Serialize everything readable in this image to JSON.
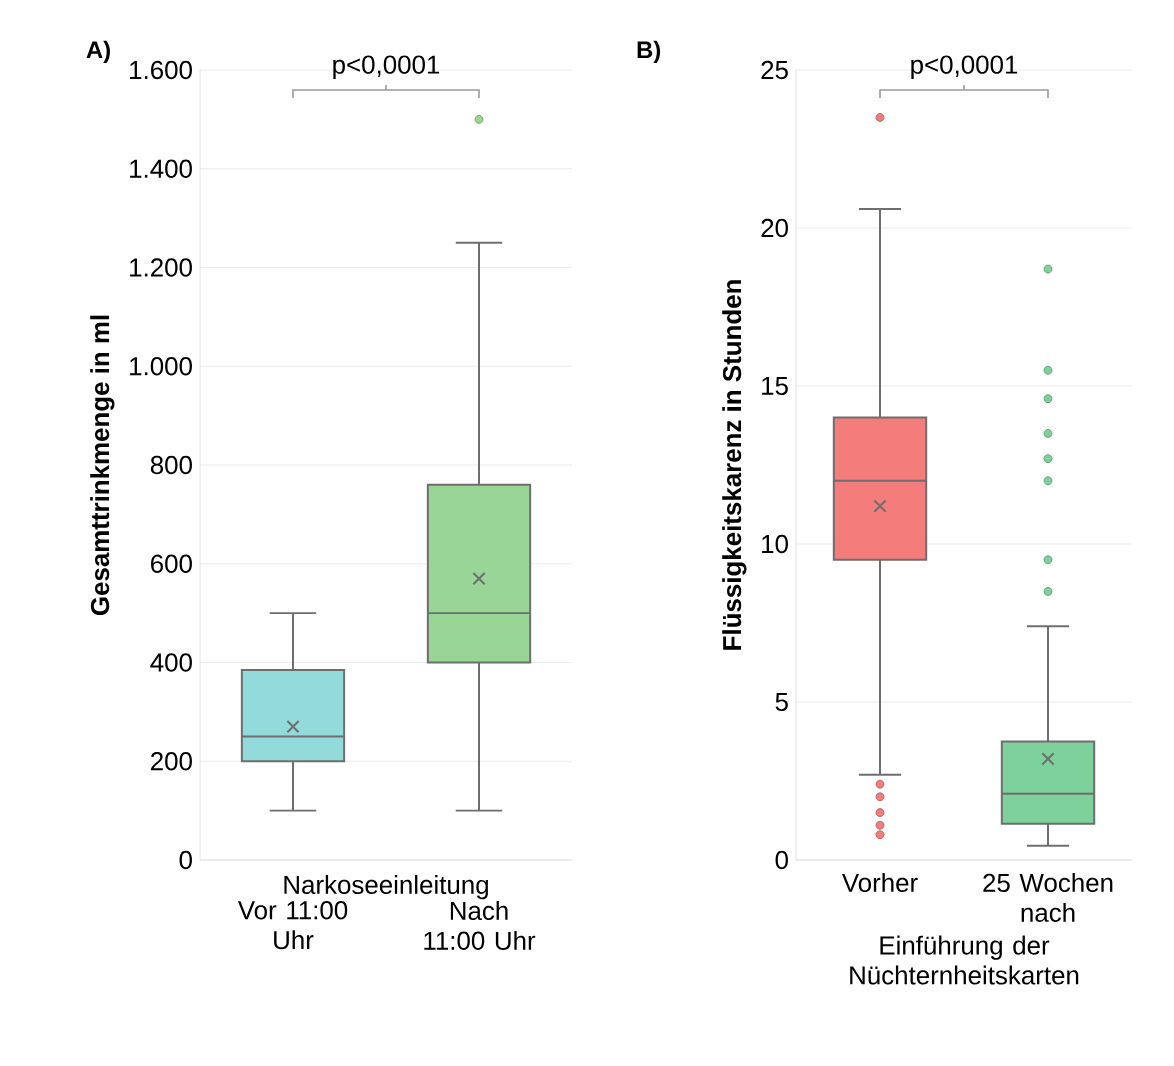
{
  "chart_data": [
    {
      "type": "box",
      "title": "A)",
      "ylabel": "Gesamttrinkmenge in ml",
      "xlabel": "Narkoseeinleitung",
      "categories": [
        "Vor 11:00 Uhr",
        "Nach 11:00 Uhr"
      ],
      "colors": [
        "#93dbdb",
        "#98d596"
      ],
      "boxes": [
        {
          "low": 100,
          "q1": 200,
          "median": 250,
          "q3": 385,
          "high": 500,
          "mean": 270
        },
        {
          "low": 100,
          "q1": 400,
          "median": 500,
          "q3": 760,
          "high": 1250,
          "mean": 570,
          "outliers": [
            1500
          ]
        }
      ],
      "ylim": [
        0,
        1600
      ],
      "yticks": [
        0,
        200,
        400,
        600,
        800,
        {
          "value": 1000,
          "label": "1.000"
        },
        {
          "value": 1200,
          "label": "1.200"
        },
        {
          "value": 1400,
          "label": "1.400"
        },
        {
          "value": 1600,
          "label": "1.600"
        }
      ],
      "grid": "y",
      "annotations": [
        "p<0,0001"
      ]
    },
    {
      "type": "box",
      "title": "B)",
      "ylabel": "Flüssigkeitskarenz in Stunden",
      "xlabel": "Einführung der Nüchternheitskarten",
      "categories": [
        "Vorher",
        "25 Wochen nach"
      ],
      "colors": [
        "#f47c7a",
        "#7dd19a"
      ],
      "boxes": [
        {
          "low": 2.7,
          "q1": 9.5,
          "median": 12,
          "q3": 14,
          "high": 20.6,
          "mean": 11.2,
          "outliers": [
            23.5,
            2.4,
            2.0,
            1.5,
            1.1,
            0.8
          ]
        },
        {
          "low": 0.45,
          "q1": 1.15,
          "median": 2.1,
          "q3": 3.75,
          "high": 7.4,
          "mean": 3.2,
          "outliers": [
            18.7,
            15.5,
            14.6,
            13.5,
            12.7,
            12.0,
            9.5,
            8.5
          ]
        }
      ],
      "ylim": [
        0,
        25
      ],
      "yticks": [
        0,
        5,
        10,
        15,
        20,
        25
      ],
      "grid": "y",
      "annotations": [
        "p<0,0001"
      ]
    }
  ]
}
